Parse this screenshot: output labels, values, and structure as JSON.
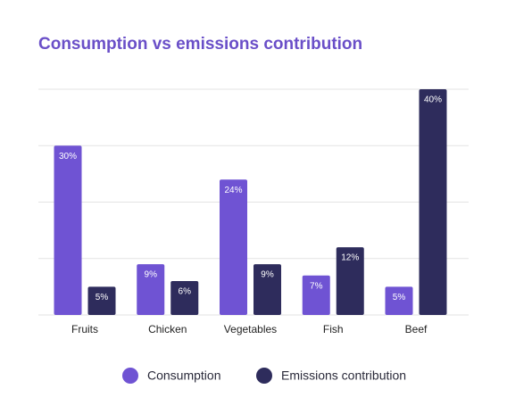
{
  "chart_data": {
    "type": "bar",
    "title": "Consumption vs emissions contribution",
    "categories": [
      "Fruits",
      "Chicken",
      "Vegetables",
      "Fish",
      "Beef"
    ],
    "series": [
      {
        "name": "Consumption",
        "color": "#6f53d3",
        "values": [
          30,
          9,
          24,
          7,
          5
        ],
        "value_labels": [
          "30%",
          "9%",
          "24%",
          "7%",
          "5%"
        ]
      },
      {
        "name": "Emissions contribution",
        "color": "#2e2c5c",
        "values": [
          5,
          6,
          9,
          12,
          40
        ],
        "value_labels": [
          "5%",
          "6%",
          "9%",
          "12%",
          "40%"
        ]
      }
    ],
    "ylim": [
      0,
      40
    ],
    "yticks": [
      0,
      10,
      20,
      30,
      40
    ],
    "grid": true
  }
}
